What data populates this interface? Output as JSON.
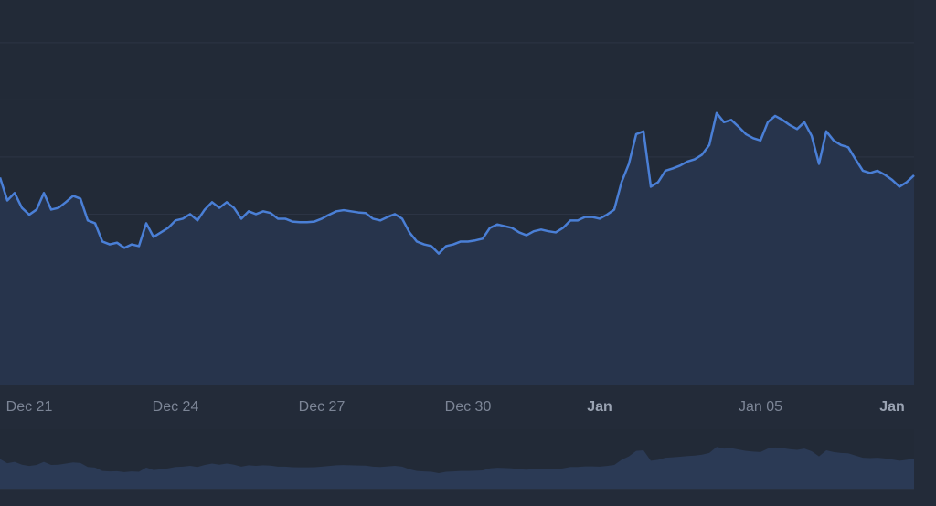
{
  "chart_data": {
    "type": "area",
    "categories": [
      null,
      null,
      null,
      null,
      "Dec 21",
      null,
      null,
      null,
      null,
      null,
      null,
      null,
      null,
      null,
      null,
      null,
      null,
      null,
      null,
      null,
      null,
      null,
      null,
      null,
      "Dec 24",
      null,
      null,
      null,
      null,
      null,
      null,
      null,
      null,
      null,
      null,
      null,
      null,
      null,
      null,
      null,
      null,
      null,
      null,
      null,
      "Dec 27",
      null,
      null,
      null,
      null,
      null,
      null,
      null,
      null,
      null,
      null,
      null,
      null,
      null,
      null,
      null,
      null,
      null,
      null,
      null,
      "Dec 30",
      null,
      null,
      null,
      null,
      null,
      null,
      null,
      null,
      null,
      null,
      null,
      null,
      null,
      null,
      null,
      null,
      null,
      "Jan",
      null,
      null,
      null,
      null,
      null,
      null,
      null,
      null,
      null,
      null,
      null,
      null,
      null,
      null,
      null,
      null,
      null,
      null,
      null,
      null,
      null,
      "Jan 05",
      null,
      null,
      null,
      null,
      null,
      null,
      null,
      null,
      null,
      null,
      null,
      null,
      null,
      null,
      null,
      null,
      null,
      "Jan",
      null,
      null,
      null
    ],
    "values": [
      36.4,
      32.4,
      33.7,
      31.1,
      29.9,
      30.8,
      33.7,
      30.8,
      31.1,
      32.1,
      33.2,
      32.7,
      28.9,
      28.4,
      25.2,
      24.7,
      25.0,
      24.1,
      24.7,
      24.4,
      28.4,
      26.0,
      26.8,
      27.6,
      28.9,
      29.2,
      30.0,
      28.9,
      30.8,
      32.1,
      31.1,
      32.1,
      31.1,
      29.2,
      30.5,
      30.0,
      30.5,
      30.2,
      29.2,
      29.2,
      28.7,
      28.6,
      28.6,
      28.7,
      29.2,
      29.9,
      30.5,
      30.7,
      30.5,
      30.3,
      30.2,
      29.2,
      28.9,
      29.5,
      30.0,
      29.2,
      26.8,
      25.2,
      24.7,
      24.4,
      23.1,
      24.4,
      24.7,
      25.2,
      25.2,
      25.4,
      25.7,
      27.6,
      28.2,
      27.9,
      27.6,
      26.8,
      26.3,
      27.0,
      27.3,
      27.0,
      26.8,
      27.6,
      28.9,
      28.9,
      29.5,
      29.5,
      29.2,
      29.9,
      30.8,
      35.6,
      38.8,
      44.0,
      44.5,
      34.8,
      35.6,
      37.6,
      38.0,
      38.5,
      39.2,
      39.6,
      40.4,
      42.1,
      47.7,
      46.1,
      46.5,
      45.3,
      44.0,
      43.3,
      42.9,
      46.1,
      47.2,
      46.5,
      45.6,
      44.9,
      46.1,
      43.7,
      38.8,
      44.5,
      42.9,
      42.1,
      41.7,
      39.6,
      37.6,
      37.2,
      37.6,
      36.9,
      36.0,
      34.8,
      35.6,
      36.8
    ],
    "color": "#4a7fd6",
    "ylim": [
      0,
      67.5
    ],
    "yticks": [
      10,
      20,
      30,
      40,
      50,
      60
    ],
    "grid": true
  }
}
